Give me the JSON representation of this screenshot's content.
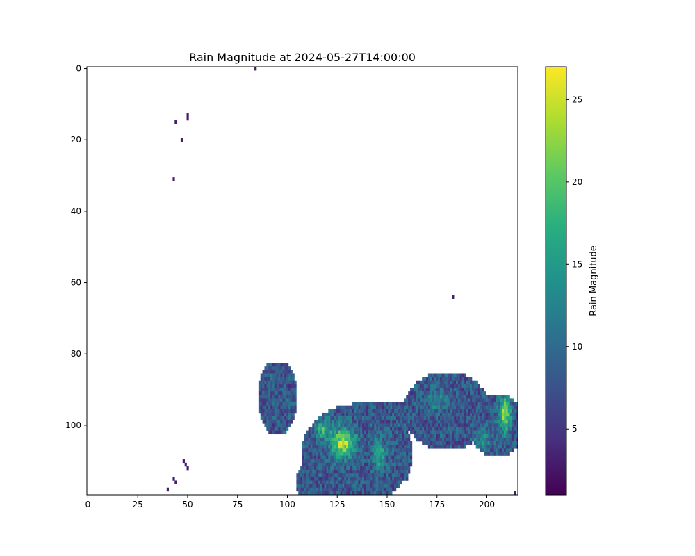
{
  "chart_data": {
    "type": "heatmap",
    "title": "Rain Magnitude at 2024-05-27T14:00:00",
    "xlabel": "",
    "ylabel": "",
    "x_range": [
      0,
      216
    ],
    "y_range": [
      0,
      120
    ],
    "y_inverted": true,
    "x_ticks": [
      0,
      25,
      50,
      75,
      100,
      125,
      150,
      175,
      200
    ],
    "y_ticks": [
      0,
      20,
      40,
      60,
      80,
      100
    ],
    "colorbar": {
      "label": "Rain Magnitude",
      "range": [
        1,
        27
      ],
      "ticks": [
        5,
        10,
        15,
        20,
        25
      ],
      "colormap": "viridis"
    },
    "notes_regions": [
      {
        "row": 0,
        "col": 84,
        "value": 2
      },
      {
        "row": 13,
        "col": 50,
        "value": 3
      },
      {
        "row": 14,
        "col": 50,
        "value": 3
      },
      {
        "row": 15,
        "col": 44,
        "value": 3
      },
      {
        "row": 20,
        "col": 47,
        "value": 3
      },
      {
        "row": 31,
        "col": 43,
        "value": 3
      },
      {
        "row": 64,
        "col": 183,
        "value": 3
      },
      {
        "row": 110,
        "col": 48,
        "value": 3
      },
      {
        "row": 111,
        "col": 49,
        "value": 3
      },
      {
        "row": 112,
        "col": 50,
        "value": 3
      },
      {
        "row": 115,
        "col": 43,
        "value": 3
      },
      {
        "row": 116,
        "col": 44,
        "value": 3
      },
      {
        "row": 118,
        "col": 40,
        "value": 3
      },
      {
        "row": 119,
        "col": 214,
        "value": 3
      }
    ]
  }
}
